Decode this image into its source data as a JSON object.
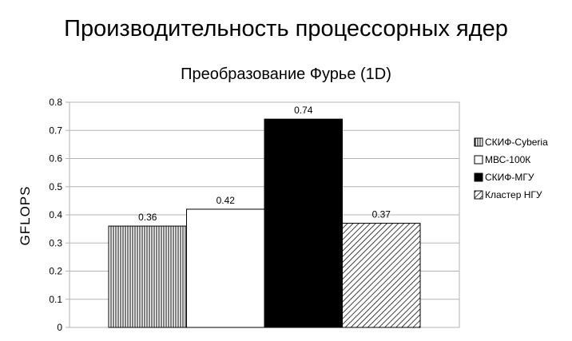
{
  "slide_title": "Производительность процессорных ядер",
  "chart_data": {
    "type": "bar",
    "title": "Преобразование Фурье (1D)",
    "xlabel": "",
    "ylabel": "GFLOPS",
    "ylim": [
      0,
      0.8
    ],
    "yticks": [
      0,
      0.1,
      0.2,
      0.3,
      0.4,
      0.5,
      0.6,
      0.7,
      0.8
    ],
    "ytick_labels": [
      "0",
      "0.1",
      "0.2",
      "0.3",
      "0.4",
      "0.5",
      "0.6",
      "0.7",
      "0.8"
    ],
    "grid": true,
    "legend_position": "right",
    "series": [
      {
        "name": "СКИФ-Cyberia",
        "values": [
          0.36
        ],
        "label": "0.36",
        "fill": "vertical-hatch",
        "color": "#000000"
      },
      {
        "name": "МВС-100К",
        "values": [
          0.42
        ],
        "label": "0.42",
        "fill": "solid",
        "color": "#ffffff"
      },
      {
        "name": "СКИФ-МГУ",
        "values": [
          0.74
        ],
        "label": "0.74",
        "fill": "solid",
        "color": "#000000"
      },
      {
        "name": "Кластер НГУ",
        "values": [
          0.37
        ],
        "label": "0.37",
        "fill": "diagonal-hatch",
        "color": "#000000"
      }
    ]
  }
}
